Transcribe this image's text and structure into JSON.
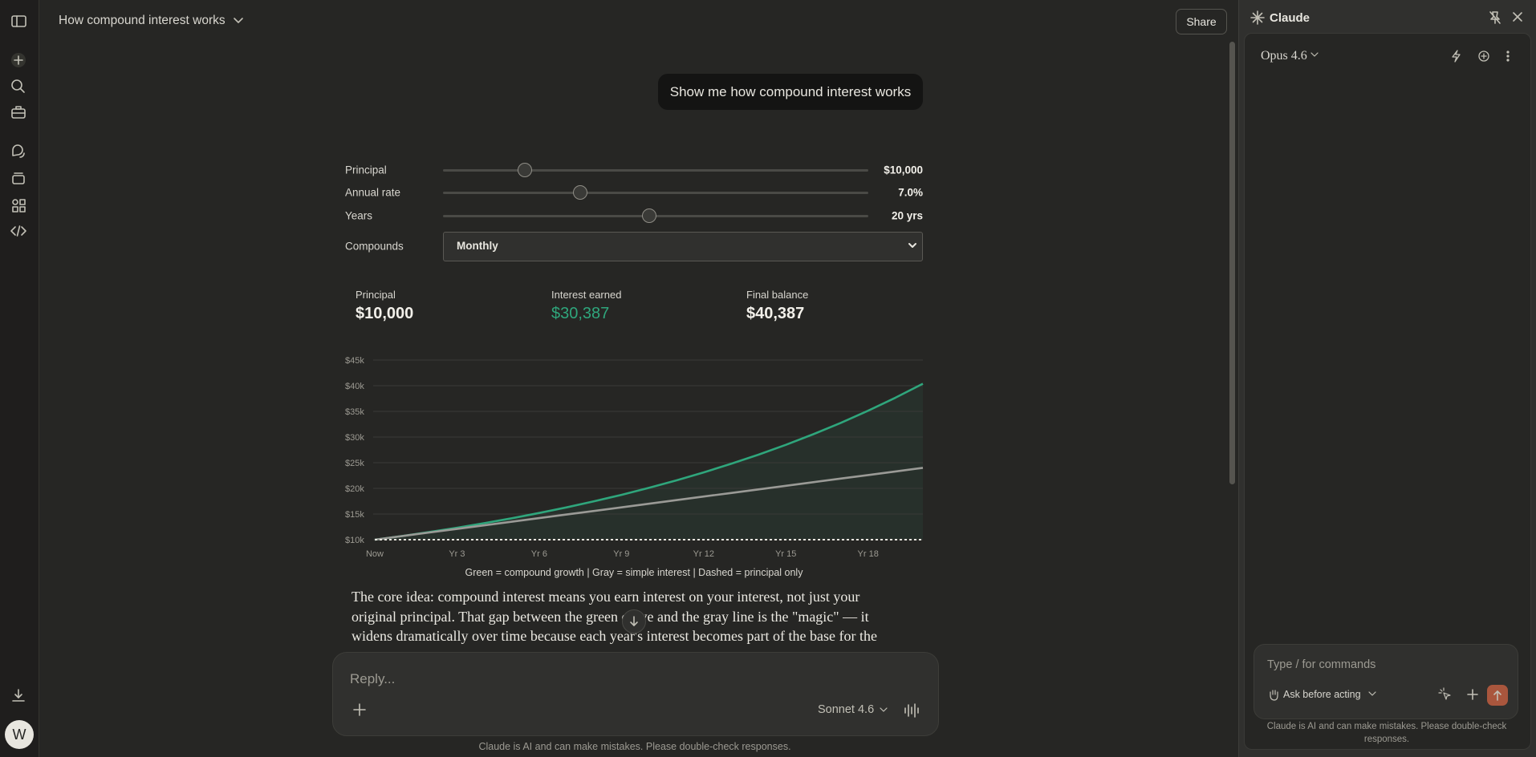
{
  "header": {
    "title": "How compound interest works",
    "share": "Share"
  },
  "user_message": "Show me how compound interest works",
  "controls": [
    {
      "label": "Principal",
      "value": "$10,000"
    },
    {
      "label": "Annual rate",
      "value": "7.0%"
    },
    {
      "label": "Years",
      "value": "20 yrs"
    }
  ],
  "compounds": {
    "label": "Compounds",
    "value": "Monthly"
  },
  "stats": [
    {
      "label": "Principal",
      "value": "$10,000"
    },
    {
      "label": "Interest earned",
      "value": "$30,387"
    },
    {
      "label": "Final balance",
      "value": "$40,387"
    }
  ],
  "chart_data": {
    "type": "line",
    "categories": [
      "Now",
      null,
      null,
      "Yr 3",
      null,
      null,
      "Yr 6",
      null,
      null,
      "Yr 9",
      null,
      null,
      "Yr 12",
      null,
      null,
      "Yr 15",
      null,
      null,
      "Yr 18",
      null,
      null
    ],
    "series": [
      {
        "color": "#2fa67c",
        "area": true,
        "values": [
          10000,
          10723,
          11498,
          12329,
          13221,
          14176,
          15201,
          16300,
          17478,
          18742,
          20097,
          21549,
          23107,
          24778,
          26569,
          28489,
          30549,
          32757,
          35125,
          37665,
          40387
        ]
      },
      {
        "color": "#9a9a96",
        "values": [
          10000,
          10700,
          11400,
          12100,
          12800,
          13500,
          14200,
          14900,
          15600,
          16300,
          17000,
          17700,
          18400,
          19100,
          19800,
          20500,
          21200,
          21900,
          22600,
          23300,
          24000
        ]
      },
      {
        "color": "#e8e6df",
        "dashed": true,
        "values": [
          10000,
          10000,
          10000,
          10000,
          10000,
          10000,
          10000,
          10000,
          10000,
          10000,
          10000,
          10000,
          10000,
          10000,
          10000,
          10000,
          10000,
          10000,
          10000,
          10000,
          10000
        ]
      }
    ],
    "ylim": [
      10000,
      45000
    ],
    "yticks": [
      {
        "value": 10000,
        "label": "$10k"
      },
      {
        "value": 15000,
        "label": "$15k"
      },
      {
        "value": 20000,
        "label": "$20k"
      },
      {
        "value": 25000,
        "label": "$25k"
      },
      {
        "value": 30000,
        "label": "$30k"
      },
      {
        "value": 35000,
        "label": "$35k"
      },
      {
        "value": 40000,
        "label": "$40k"
      },
      {
        "value": 45000,
        "label": "$45k"
      }
    ],
    "grid": true,
    "caption": "Green = compound growth  |  Gray = simple interest  |  Dashed = principal only"
  },
  "response_lines": [
    "The core idea: compound interest means you earn interest on your interest, not just your",
    "original principal. That gap between the green curve and the gray line is the \"magic\" — it",
    "widens dramatically over time because each year's interest becomes part of the base for the"
  ],
  "composer": {
    "placeholder": "Reply...",
    "model": "Sonnet 4.6"
  },
  "footer": "Claude is AI and can make mistakes. Please double-check responses.",
  "avatar": "W",
  "side_panel": {
    "title": "Claude",
    "model": "Opus 4.6",
    "placeholder": "Type / for commands",
    "mode": "Ask before acting",
    "disclaimer": [
      "Claude is AI and can make mistakes. Please double-check",
      "responses."
    ]
  }
}
